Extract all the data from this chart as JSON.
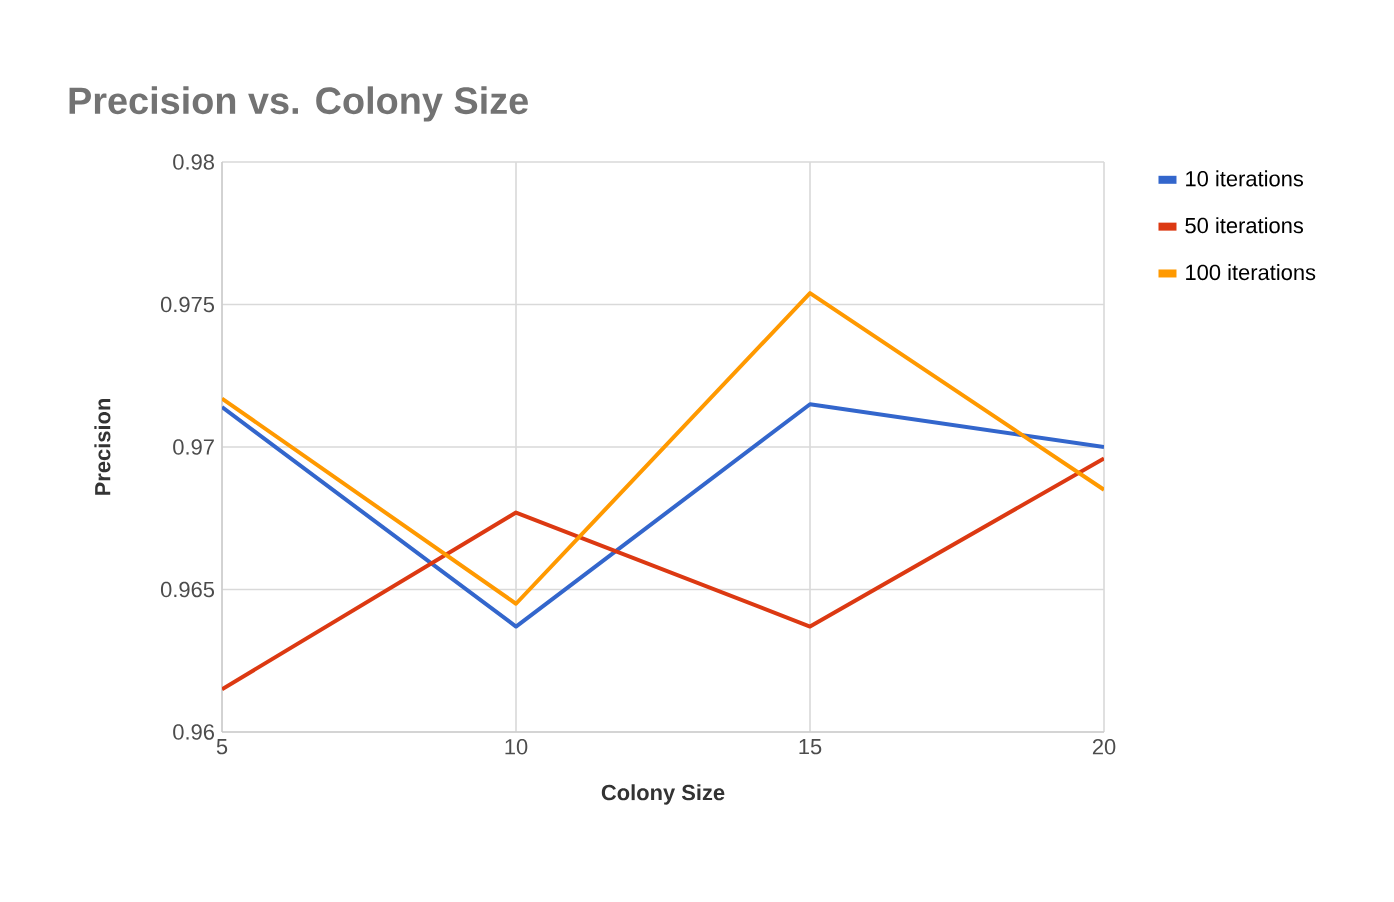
{
  "chart_data": {
    "type": "line",
    "title": "Precision vs. Colony Size",
    "xlabel": "Colony Size",
    "ylabel": "Precision",
    "x": [
      5,
      10,
      15,
      20
    ],
    "series": [
      {
        "name": "10 iterations",
        "color": "#3366cc",
        "values": [
          0.9714,
          0.9637,
          0.9715,
          0.97
        ]
      },
      {
        "name": "50 iterations",
        "color": "#dc3912",
        "values": [
          0.9615,
          0.9677,
          0.9637,
          0.9696
        ]
      },
      {
        "name": "100 iterations",
        "color": "#ff9900",
        "values": [
          0.9717,
          0.9645,
          0.9754,
          0.9685
        ]
      }
    ],
    "xlim": [
      5,
      20
    ],
    "ylim": [
      0.96,
      0.98
    ],
    "xticks": [
      5,
      10,
      15,
      20
    ],
    "yticks": [
      0.96,
      0.965,
      0.97,
      0.975,
      0.98
    ],
    "grid": true,
    "legend": "right",
    "marker": "none",
    "line_style": "solid"
  }
}
